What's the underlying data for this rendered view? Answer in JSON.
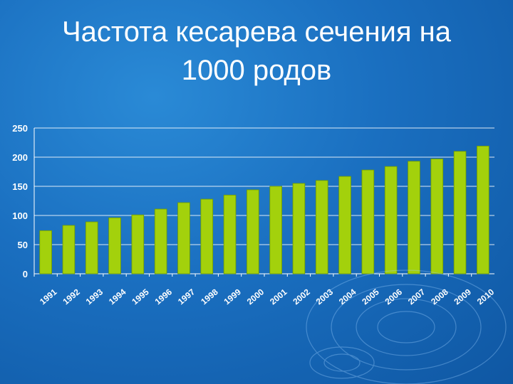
{
  "slide": {
    "title_line1": "Частота кесарева сечения на",
    "title_line2": "1000 родов"
  },
  "colors": {
    "background": "#1a6fc0",
    "bar": "#a3d10c",
    "bar_edge": "#6f9a00",
    "axis_text": "#ffffff",
    "grid": "#ffffff"
  },
  "chart_data": {
    "type": "bar",
    "title": "",
    "xlabel": "",
    "ylabel": "",
    "categories": [
      "1991",
      "1992",
      "1993",
      "1994",
      "1995",
      "1996",
      "1997",
      "1998",
      "1999",
      "2000",
      "2001",
      "2002",
      "2003",
      "2004",
      "2005",
      "2006",
      "2007",
      "2008",
      "2009",
      "2010"
    ],
    "values": [
      74,
      83,
      89,
      96,
      101,
      111,
      122,
      128,
      135,
      144,
      150,
      155,
      160,
      167,
      178,
      184,
      193,
      197,
      210,
      219
    ],
    "ylim": [
      0,
      250
    ],
    "yticks": [
      "0",
      "50",
      "100",
      "150",
      "200",
      "250"
    ],
    "grid": true,
    "legend": "none"
  }
}
